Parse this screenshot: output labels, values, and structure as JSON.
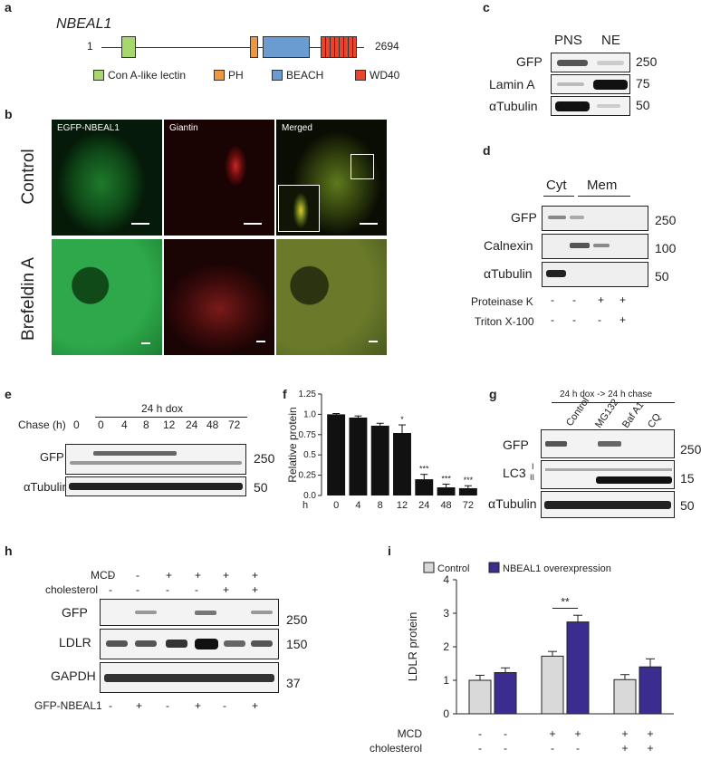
{
  "panels": {
    "a": "a",
    "b": "b",
    "c": "c",
    "d": "d",
    "e": "e",
    "f": "f",
    "g": "g",
    "h": "h",
    "i": "i"
  },
  "panel_a": {
    "gene": "NBEAL1",
    "start": "1",
    "end": "2694",
    "legend": [
      {
        "label": "Con A-like lectin",
        "color": "#a6d86e"
      },
      {
        "label": "PH",
        "color": "#f0963c"
      },
      {
        "label": "BEACH",
        "color": "#6a9bd1"
      },
      {
        "label": "WD40",
        "color": "#e8452c"
      }
    ]
  },
  "panel_b": {
    "columns": [
      "EGFP-NBEAL1",
      "Giantin",
      "Merged"
    ],
    "rows": [
      "Control",
      "Brefeldin A"
    ]
  },
  "panel_c": {
    "lanes": [
      "PNS",
      "NE"
    ],
    "rows": [
      {
        "name": "GFP",
        "mw": "250"
      },
      {
        "name": "Lamin A",
        "mw": "75"
      },
      {
        "name": "αTubulin",
        "mw": "50"
      }
    ]
  },
  "panel_d": {
    "lane_groups": [
      "Cyt",
      "Mem"
    ],
    "rows": [
      {
        "name": "GFP",
        "mw": "250"
      },
      {
        "name": "Calnexin",
        "mw": "100"
      },
      {
        "name": "αTubulin",
        "mw": "50"
      }
    ],
    "treatments": [
      {
        "name": "Proteinase K",
        "signs": [
          "-",
          "-",
          "+",
          "+"
        ]
      },
      {
        "name": "Triton X-100",
        "signs": [
          "-",
          "-",
          "-",
          "+"
        ]
      }
    ]
  },
  "panel_e": {
    "header": "24 h dox",
    "chase_label": "Chase (h)",
    "times": [
      "0",
      "0",
      "4",
      "8",
      "12",
      "24",
      "48",
      "72"
    ],
    "rows": [
      {
        "name": "GFP",
        "mw": "250"
      },
      {
        "name": "αTubulin",
        "mw": "50"
      }
    ]
  },
  "panel_f": {
    "xaxis_h": "h",
    "chart_data": {
      "type": "bar",
      "categories": [
        "0",
        "4",
        "8",
        "12",
        "24",
        "48",
        "72"
      ],
      "values": [
        1.0,
        0.96,
        0.86,
        0.77,
        0.2,
        0.1,
        0.09
      ],
      "errors": [
        0.01,
        0.02,
        0.03,
        0.1,
        0.06,
        0.04,
        0.03
      ],
      "significance": [
        "",
        "",
        "",
        "*",
        "***",
        "***",
        "***"
      ],
      "ylabel": "Relative protein",
      "ylim": [
        0,
        1.25
      ],
      "yticks": [
        "0.0",
        "0.25",
        "0.5",
        "0.75",
        "1.0",
        "1.25"
      ],
      "color": "#111111"
    }
  },
  "panel_g": {
    "header": "24 h dox -> 24 h chase",
    "lanes": [
      "Control",
      "MG132",
      "Baf A1",
      "CQ"
    ],
    "rows": [
      {
        "name": "GFP",
        "mw": "250"
      },
      {
        "name": "LC3",
        "mw": "15",
        "sub": [
          "I",
          "II"
        ]
      },
      {
        "name": "αTubulin",
        "mw": "50"
      }
    ]
  },
  "panel_h": {
    "treatments": [
      {
        "name": "MCD",
        "signs": [
          "-",
          "-",
          "+",
          "+",
          "+",
          "+"
        ]
      },
      {
        "name": "cholesterol",
        "signs": [
          "-",
          "-",
          "-",
          "-",
          "+",
          "+"
        ]
      }
    ],
    "rows": [
      {
        "name": "GFP",
        "mw": "250"
      },
      {
        "name": "LDLR",
        "mw": "150"
      },
      {
        "name": "GAPDH",
        "mw": "37"
      }
    ],
    "bottom": {
      "name": "GFP-NBEAL1",
      "signs": [
        "-",
        "+",
        "-",
        "+",
        "-",
        "+"
      ]
    }
  },
  "panel_i": {
    "chart_data": {
      "type": "bar",
      "series": [
        {
          "name": "Control",
          "values": [
            1.0,
            1.72,
            1.02
          ],
          "errors": [
            0.15,
            0.14,
            0.15
          ],
          "color": "#d9d9d9"
        },
        {
          "name": "NBEAL1 overexpression",
          "values": [
            1.23,
            2.74,
            1.4
          ],
          "errors": [
            0.14,
            0.2,
            0.24
          ],
          "color": "#3a2d8f"
        }
      ],
      "ylabel": "LDLR protein",
      "ylim": [
        0,
        4
      ],
      "yticks": [
        "0",
        "1",
        "2",
        "3",
        "4"
      ],
      "significance": "**",
      "conditions": [
        {
          "name": "MCD",
          "signs": [
            "-",
            "-",
            "+",
            "+",
            "+",
            "+"
          ]
        },
        {
          "name": "cholesterol",
          "signs": [
            "-",
            "-",
            "-",
            "-",
            "+",
            "+"
          ]
        }
      ]
    }
  }
}
